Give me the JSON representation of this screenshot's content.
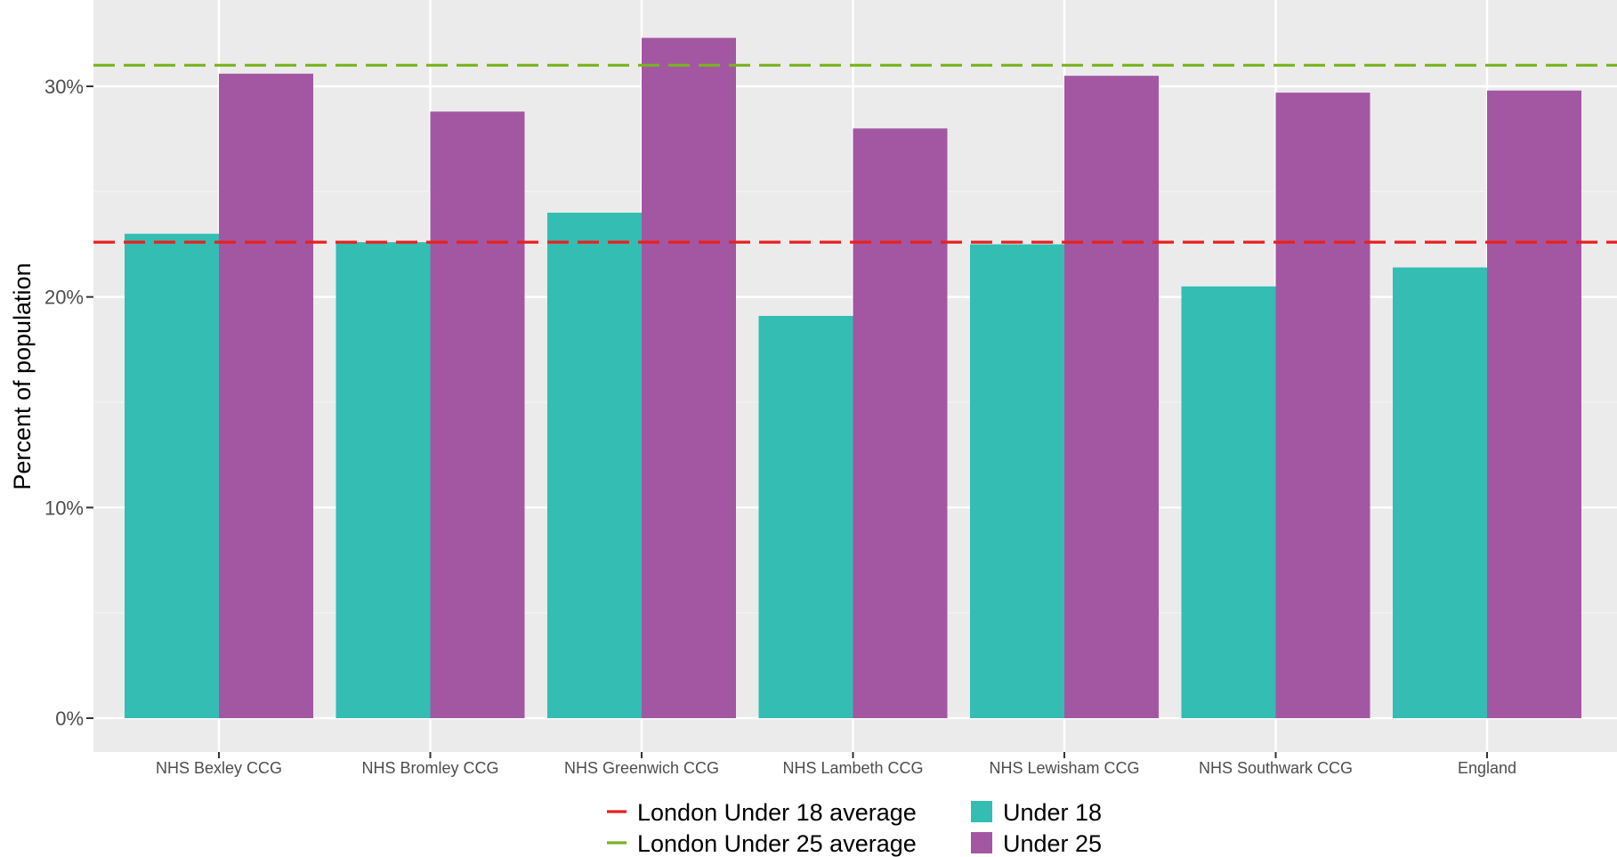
{
  "chart_data": {
    "type": "bar",
    "title": "",
    "xlabel": "",
    "ylabel": "Percent of population",
    "ylim": [
      0,
      33.4
    ],
    "y_ticks": [
      0,
      10,
      20,
      30
    ],
    "y_tick_labels": [
      "0%",
      "10%",
      "20%",
      "30%"
    ],
    "grid": true,
    "legend_position": "bottom",
    "categories": [
      "NHS Bexley CCG",
      "NHS Bromley CCG",
      "NHS Greenwich CCG",
      "NHS Lambeth CCG",
      "NHS Lewisham CCG",
      "NHS Southwark CCG",
      "England"
    ],
    "series": [
      {
        "name": "Under 18",
        "color": "#33bdb3",
        "values": [
          23.0,
          22.6,
          24.0,
          19.1,
          22.5,
          20.5,
          21.4
        ]
      },
      {
        "name": "Under 25",
        "color": "#a357a2",
        "values": [
          30.6,
          28.8,
          32.3,
          28.0,
          30.5,
          29.7,
          29.8
        ]
      }
    ],
    "reference_lines": [
      {
        "name": "London Under 18 average",
        "value": 22.6,
        "color": "#e8201f",
        "style": "dashed"
      },
      {
        "name": "London Under 25 average",
        "value": 31.0,
        "color": "#78b41e",
        "style": "dashed"
      }
    ],
    "legend": {
      "lines": [
        "London Under 18 average",
        "London Under 25 average"
      ],
      "fills": [
        "Under 18",
        "Under 25"
      ]
    }
  },
  "colors": {
    "panel_background": "#ebebeb",
    "grid_major": "#ffffff",
    "grid_minor": "#f4f4f4",
    "tick_text": "#4d4d4d"
  }
}
